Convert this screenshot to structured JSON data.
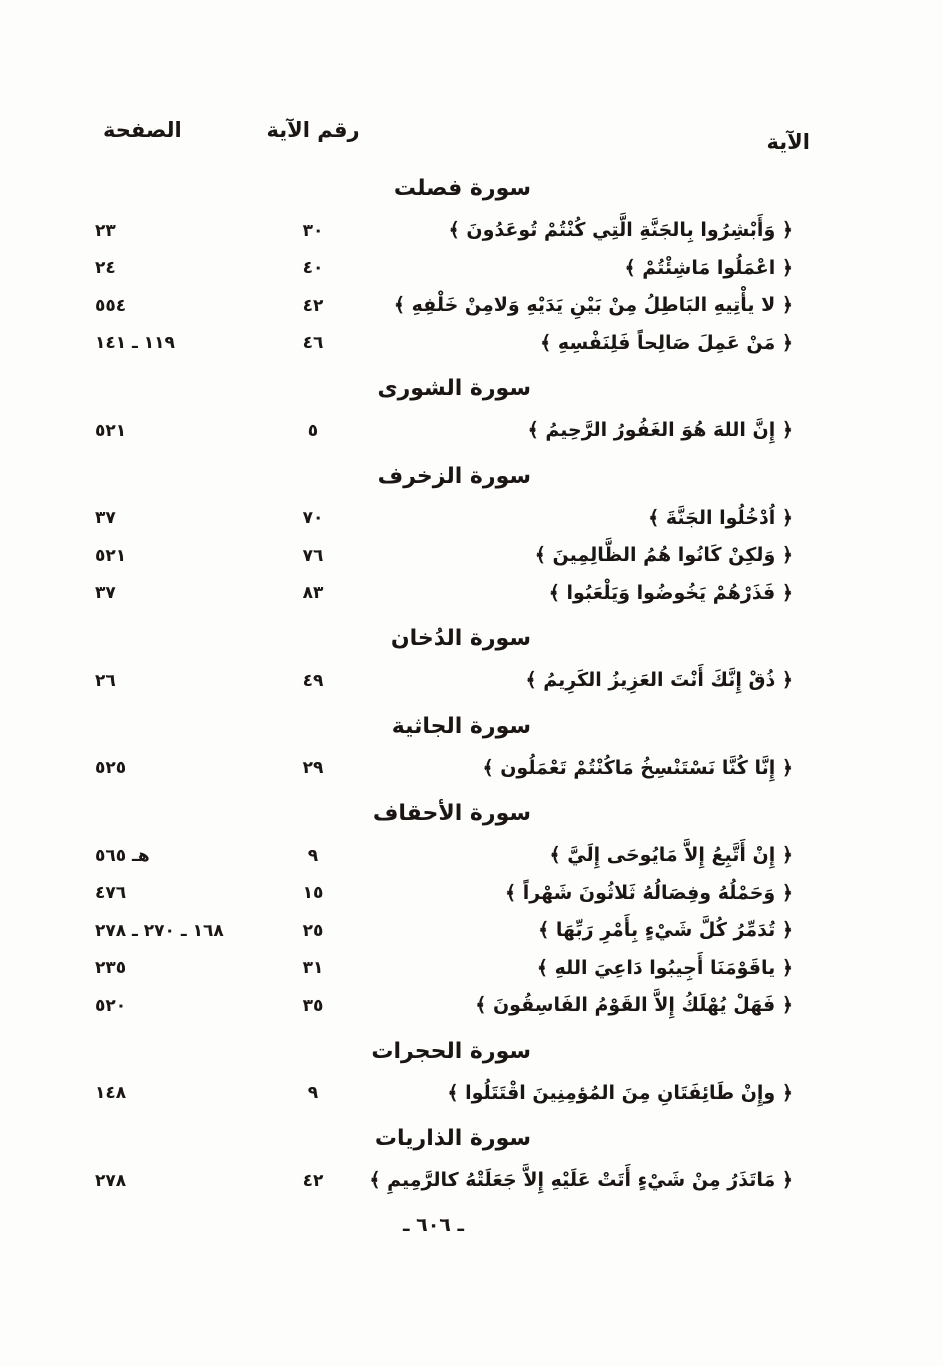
{
  "header": {
    "verse_col": "الآية",
    "verse_number_col": "رقم الآية",
    "page_col": "الصفحة"
  },
  "sections": [
    {
      "title": "سورة فصلت",
      "rows": [
        {
          "verse": "﴿ وَأَبْشِرُوا بِالجَنَّةِ الَّتِي كُنْتُمْ تُوعَدُونَ ﴾",
          "verse_number": "٣٠",
          "page": "٢٣"
        },
        {
          "verse": "﴿ اعْمَلُوا مَاشِئْتُمْ ﴾",
          "verse_number": "٤٠",
          "page": "٢٤"
        },
        {
          "verse": "﴿ لا يأْتِيهِ البَاطِلُ مِنْ بَيْنِ يَدَيْهِ وَلامِنْ خَلْفِهِ ﴾",
          "verse_number": "٤٢",
          "page": "٥٥٤"
        },
        {
          "verse": "﴿ مَنْ عَمِلَ صَالِحاً فَلِنَفْسِهِ ﴾",
          "verse_number": "٤٦",
          "page": "١١٩ ـ ١٤١"
        }
      ]
    },
    {
      "title": "سورة الشورى",
      "rows": [
        {
          "verse": "﴿ إِنَّ اللهَ هُوَ الغَفُورُ الرَّحِيمُ ﴾",
          "verse_number": "٥",
          "page": "٥٢١"
        }
      ]
    },
    {
      "title": "سورة الزخرف",
      "rows": [
        {
          "verse": "﴿ اُدْخُلُوا الجَنَّةَ ﴾",
          "verse_number": "٧٠",
          "page": "٣٧"
        },
        {
          "verse": "﴿ وَلكِنْ كَانُوا هُمُ الظَّالِمِينَ ﴾",
          "verse_number": "٧٦",
          "page": "٥٢١"
        },
        {
          "verse": "﴿ فَذَرْهُمْ يَخُوضُوا وَيَلْعَبُوا ﴾",
          "verse_number": "٨٣",
          "page": "٣٧"
        }
      ]
    },
    {
      "title": "سورة الدُخان",
      "rows": [
        {
          "verse": "﴿ ذُقْ إِنَّكَ أَنْتَ العَزِيزُ الكَرِيمُ ﴾",
          "verse_number": "٤٩",
          "page": "٢٦"
        }
      ]
    },
    {
      "title": "سورة الجاثية",
      "rows": [
        {
          "verse": "﴿ إِنَّا كُنَّا نَسْتَنْسِخُ مَاكُنْتُمْ تَعْمَلُون ﴾",
          "verse_number": "٢٩",
          "page": "٥٢٥"
        }
      ]
    },
    {
      "title": "سورة الأحقاف",
      "rows": [
        {
          "verse": "﴿ إِنْ أَتَّبِعُ إِلاَّ مَايُوحَى إِلَيَّ ﴾",
          "verse_number": "٩",
          "page": "هـ ٥٦٥"
        },
        {
          "verse": "﴿ وَحَمْلُهُ وفِصَالُهُ ثَلاثُونَ شَهْراً ﴾",
          "verse_number": "١٥",
          "page": "٤٧٦"
        },
        {
          "verse": "﴿ تُدَمِّرُ كُلَّ شَيْءٍ بِأَمْرِ رَبِّهَا ﴾",
          "verse_number": "٢٥",
          "page": "١٦٨ ـ ٢٧٠ ـ ٢٧٨"
        },
        {
          "verse": "﴿ ياقَوْمَنَا أَجِيبُوا دَاعِيَ اللهِ ﴾",
          "verse_number": "٣١",
          "page": "٢٣٥"
        },
        {
          "verse": "﴿ فَهَلْ يُهْلَكُ إِلاَّ القَوْمُ الفَاسِقُونَ ﴾",
          "verse_number": "٣٥",
          "page": "٥٢٠"
        }
      ]
    },
    {
      "title": "سورة الحجرات",
      "rows": [
        {
          "verse": "﴿ وإِنْ طَائِفَتَانِ مِنَ المُؤمِنِينَ اقْتَتَلُوا ﴾",
          "verse_number": "٩",
          "page": "١٤٨"
        }
      ]
    },
    {
      "title": "سورة الذاريات",
      "rows": [
        {
          "verse": "﴿ مَاتَذَرُ مِنْ شَيْءٍ أَتَتْ عَلَيْهِ إِلاَّ جَعَلَتْهُ كالرَّمِيمِ ﴾",
          "verse_number": "٤٢",
          "page": "٢٧٨"
        }
      ]
    }
  ],
  "footer": {
    "page_number": "ـ ٦٠٦ ـ"
  }
}
